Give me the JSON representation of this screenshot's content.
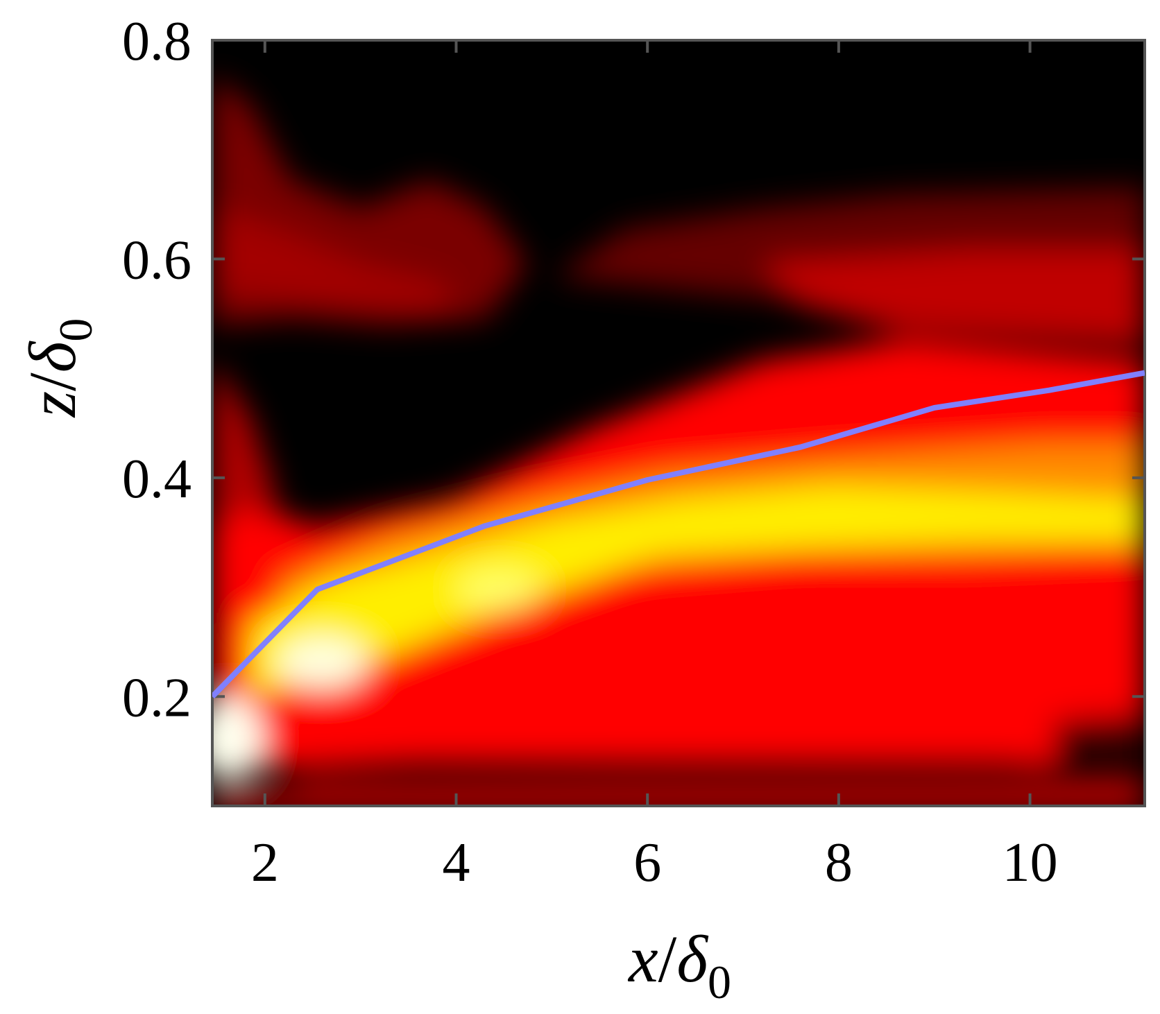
{
  "chart_data": {
    "type": "heatmap",
    "title": "",
    "xlabel": {
      "var": "x",
      "slash": "/",
      "delta": "δ",
      "sub": "0"
    },
    "ylabel": {
      "var": "z",
      "slash": "/",
      "delta": "δ",
      "sub": "0"
    },
    "xlim": [
      1.45,
      11.2
    ],
    "ylim": [
      0.1,
      0.8
    ],
    "xticks": [
      2,
      4,
      6,
      8,
      10
    ],
    "yticks": [
      0.2,
      0.4,
      0.6,
      0.8
    ],
    "xtick_labels": [
      "2",
      "4",
      "6",
      "8",
      "10"
    ],
    "ytick_labels": [
      "0.2",
      "0.4",
      "0.6",
      "0.8"
    ],
    "colormap": [
      "#000000",
      "#ff0000",
      "#ffff00",
      "#ffffff"
    ],
    "series": [
      {
        "type": "line",
        "color": "#8080ff",
        "x": [
          1.45,
          2.55,
          4.3,
          6.0,
          7.6,
          9.0,
          10.2,
          11.2
        ],
        "y": [
          0.2,
          0.298,
          0.356,
          0.398,
          0.428,
          0.464,
          0.48,
          0.496
        ]
      }
    ]
  }
}
